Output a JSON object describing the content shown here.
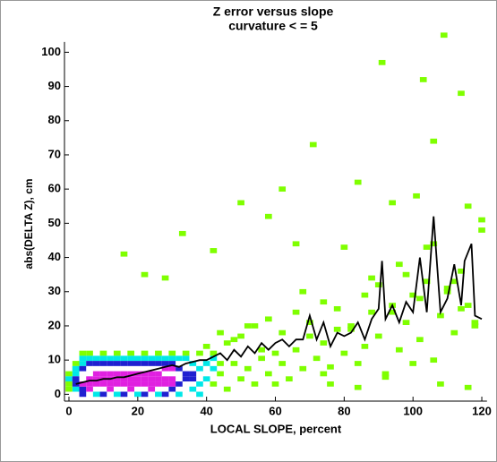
{
  "chart_data": {
    "type": "scatter",
    "title": "Z error versus slope",
    "subtitle": "curvature < = 5",
    "x_label": "LOCAL SLOPE, percent",
    "y_label": "abs(DELTA Z), cm",
    "xlim": [
      -1.3,
      121.5
    ],
    "ylim": [
      -2,
      103
    ],
    "xticks": [
      0,
      20,
      40,
      60,
      80,
      100,
      120
    ],
    "yticks": [
      0,
      10,
      20,
      30,
      40,
      50,
      60,
      70,
      80,
      90,
      100
    ],
    "series": [
      {
        "color": "#7fff00",
        "x": [
          0,
          0,
          0,
          0,
          2,
          2,
          4,
          4,
          6,
          10,
          14,
          18,
          22,
          26,
          30,
          34,
          38,
          42,
          42,
          44,
          44,
          46,
          48,
          50,
          52,
          54,
          56,
          58,
          60,
          62,
          64,
          66,
          68,
          70,
          72,
          74,
          76,
          78,
          80,
          82,
          84,
          86,
          88,
          90,
          92,
          94,
          96,
          98,
          100,
          102,
          104,
          106,
          108,
          110,
          112,
          114,
          116,
          118,
          120,
          46,
          50,
          54,
          58,
          62,
          66,
          70,
          74,
          78,
          82,
          86,
          90,
          94,
          98,
          102,
          106,
          110,
          114,
          118,
          16,
          22,
          28,
          33,
          42,
          50,
          58,
          62,
          66,
          71,
          80,
          84,
          91,
          94,
          101,
          103,
          106,
          109,
          114,
          116,
          120,
          74,
          88,
          96,
          104,
          112,
          60,
          68,
          76,
          84,
          92,
          100,
          108,
          116,
          40,
          44,
          48,
          52,
          56
        ],
        "values": [
          1.5,
          3,
          4.5,
          6,
          7.5,
          9,
          10.5,
          12,
          12,
          12,
          12,
          12,
          12,
          12,
          12,
          12,
          12,
          12,
          3,
          6,
          9,
          1.5,
          9,
          4.5,
          7.5,
          3,
          10.5,
          6,
          12,
          9,
          4.5,
          13,
          7.5,
          17,
          10.5,
          15,
          8,
          19,
          12,
          20,
          9,
          14,
          24,
          17,
          6,
          26,
          13,
          21,
          29,
          16,
          33,
          10,
          23,
          30,
          18,
          36,
          26,
          20,
          48,
          15,
          17,
          20,
          22,
          18,
          24,
          21,
          27,
          25,
          19,
          29,
          32,
          24,
          35,
          28,
          44,
          31,
          25,
          21,
          41,
          35,
          34,
          47,
          42,
          56,
          52,
          60,
          44,
          73,
          43,
          62,
          97,
          56,
          58,
          92,
          74,
          105,
          88,
          55,
          51,
          6,
          34,
          38,
          43,
          33,
          3,
          30,
          3,
          2,
          5,
          9,
          3,
          2,
          14,
          18,
          16,
          20,
          13
        ]
      },
      {
        "color": "#00e8e8",
        "x": [
          0,
          2,
          2,
          2,
          4,
          4,
          6,
          8,
          10,
          12,
          14,
          16,
          18,
          20,
          22,
          24,
          26,
          28,
          30,
          32,
          34,
          36,
          36,
          38,
          38,
          40,
          40,
          8,
          14,
          20,
          26,
          32,
          38,
          42,
          42
        ],
        "values": [
          4.5,
          1.5,
          6,
          7.5,
          9,
          10.5,
          10.5,
          10.5,
          10.5,
          10.5,
          10.5,
          10.5,
          10.5,
          10.5,
          10.5,
          10.5,
          10.5,
          10.5,
          10.5,
          10.5,
          10.5,
          1.5,
          9,
          3,
          7.5,
          4.5,
          9,
          0,
          0,
          0,
          0,
          0,
          0,
          7.5,
          10.5
        ]
      },
      {
        "color": "#2020d0",
        "x": [
          2,
          2,
          4,
          4,
          6,
          8,
          10,
          12,
          14,
          16,
          18,
          20,
          22,
          24,
          26,
          28,
          30,
          30,
          32,
          32,
          34,
          34,
          36,
          36,
          4,
          10,
          16,
          22,
          28
        ],
        "values": [
          3,
          4.5,
          1.5,
          7.5,
          9,
          9,
          9,
          9,
          9,
          9,
          9,
          9,
          9,
          9,
          9,
          9,
          1.5,
          9,
          3,
          7.5,
          4.5,
          6,
          4.5,
          6,
          0,
          0,
          0,
          0,
          0
        ]
      },
      {
        "color": "#e020e0",
        "x": [
          4,
          6,
          8,
          10,
          12,
          14,
          16,
          18,
          20,
          22,
          24,
          26,
          28,
          6,
          8,
          10,
          12,
          14,
          16,
          18,
          20,
          22,
          24,
          26,
          28,
          30,
          8,
          10,
          12,
          14,
          16,
          18,
          20,
          22,
          24,
          26,
          28,
          30,
          6,
          12,
          18,
          24,
          30
        ],
        "values": [
          3,
          3,
          3,
          3,
          3,
          3,
          3,
          3,
          3,
          3,
          3,
          3,
          3,
          4.5,
          4.5,
          4.5,
          4.5,
          4.5,
          4.5,
          4.5,
          4.5,
          4.5,
          4.5,
          4.5,
          4.5,
          4.5,
          6,
          6,
          6,
          6,
          6,
          6,
          6,
          6,
          6,
          6,
          7.5,
          7.5,
          1.5,
          1.5,
          1.5,
          1.5,
          3
        ]
      },
      {
        "color": "#000000",
        "line": true,
        "x": [
          2,
          4,
          6,
          8,
          10,
          12,
          14,
          16,
          18,
          20,
          22,
          24,
          26,
          28,
          30,
          32,
          34,
          36,
          38,
          40,
          42,
          44,
          46,
          48,
          50,
          52,
          54,
          56,
          58,
          60,
          62,
          64,
          66,
          68,
          70,
          72,
          74,
          76,
          78,
          80,
          82,
          84,
          86,
          88,
          90,
          91,
          92,
          94,
          96,
          98,
          100,
          102,
          104,
          106,
          108,
          110,
          112,
          114,
          115,
          117,
          118,
          120
        ],
        "values": [
          3,
          3.5,
          4,
          4,
          4.5,
          4.5,
          5,
          5,
          5.5,
          6,
          6.5,
          7,
          7.5,
          8,
          8.5,
          8,
          9,
          9.5,
          10,
          10,
          11,
          12,
          10,
          13,
          11,
          14,
          12,
          15,
          13,
          15,
          16,
          14,
          16,
          16,
          23,
          16,
          21,
          14,
          18,
          17,
          18,
          21,
          16,
          22,
          25,
          39,
          22,
          26,
          21,
          27,
          24,
          40,
          24,
          52,
          24,
          28,
          38,
          26,
          39,
          44,
          23,
          22
        ]
      }
    ]
  }
}
